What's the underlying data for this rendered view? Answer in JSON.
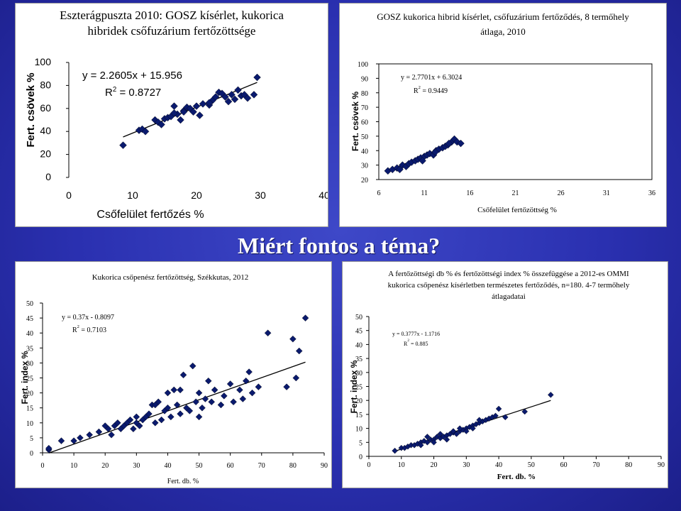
{
  "slide_title": "Miért fontos a téma?",
  "chart_data": [
    {
      "type": "scatter",
      "title_lines": [
        "Eszterágpuszta 2010: GOSZ kísérlet, kukorica",
        "hibridek csőfuzárium fertőzöttsége"
      ],
      "xlabel": "Csőfelület fertőzés %",
      "ylabel": "Fert. csövek %",
      "xlim": [
        0,
        40
      ],
      "ylim": [
        0,
        100
      ],
      "xticks": [
        "0",
        "10",
        "20",
        "30",
        "40"
      ],
      "yticks": [
        "0",
        "20",
        "40",
        "60",
        "80",
        "100"
      ],
      "equation": "y = 2.2605x + 15.956",
      "r2_prefix": "R",
      "r2_value": " = 0.8727",
      "trendline": {
        "slope": 2.2605,
        "intercept": 15.956,
        "x_range": [
          8.5,
          29.5
        ]
      },
      "gridlines": false,
      "points": [
        [
          8.5,
          28
        ],
        [
          11,
          41
        ],
        [
          11.5,
          42
        ],
        [
          12,
          40
        ],
        [
          13.5,
          50
        ],
        [
          14,
          48
        ],
        [
          14.5,
          46
        ],
        [
          15,
          51
        ],
        [
          15.5,
          52
        ],
        [
          16,
          53
        ],
        [
          16.5,
          62
        ],
        [
          17,
          55
        ],
        [
          17.5,
          50
        ],
        [
          18,
          58
        ],
        [
          18.5,
          61
        ],
        [
          19,
          60
        ],
        [
          19.5,
          57
        ],
        [
          20,
          62
        ],
        [
          20.5,
          54
        ],
        [
          21,
          64
        ],
        [
          22,
          63
        ],
        [
          22.5,
          67
        ],
        [
          23,
          70
        ],
        [
          23.5,
          74
        ],
        [
          24,
          73
        ],
        [
          24.5,
          70
        ],
        [
          25,
          66
        ],
        [
          25.5,
          72
        ],
        [
          26,
          68
        ],
        [
          26.5,
          76
        ],
        [
          27,
          71
        ],
        [
          27.5,
          72
        ],
        [
          28,
          69
        ],
        [
          29,
          72
        ],
        [
          29.5,
          87
        ],
        [
          16.5,
          56
        ],
        [
          18,
          57
        ],
        [
          22,
          65
        ]
      ]
    },
    {
      "type": "scatter",
      "title_lines": [
        "GOSZ kukorica hibrid kísérlet, csőfuzárium fertőződés, 8 termőhely",
        "átlaga, 2010"
      ],
      "xlabel": "Csőfelület fertőzöttség %",
      "ylabel": "Fert. csövek %",
      "xlim": [
        6,
        36
      ],
      "ylim": [
        20,
        100
      ],
      "xticks": [
        "6",
        "11",
        "16",
        "21",
        "26",
        "31",
        "36"
      ],
      "yticks": [
        "20",
        "30",
        "40",
        "50",
        "60",
        "70",
        "80",
        "90",
        "100"
      ],
      "equation": "y = 2.7701x + 6.3024",
      "r2_prefix": "R",
      "r2_value": " = 0.9449",
      "trendline": {
        "slope": 2.7701,
        "intercept": 6.3024,
        "x_range": [
          7,
          14.5
        ]
      },
      "gridlines": false,
      "points": [
        [
          7,
          26
        ],
        [
          7.5,
          27
        ],
        [
          8,
          28
        ],
        [
          8.3,
          27
        ],
        [
          8.6,
          30
        ],
        [
          9,
          29
        ],
        [
          9.3,
          31
        ],
        [
          9.6,
          32
        ],
        [
          10,
          33
        ],
        [
          10.3,
          34
        ],
        [
          10.6,
          35
        ],
        [
          11,
          36
        ],
        [
          11.3,
          37
        ],
        [
          11.6,
          38
        ],
        [
          12,
          37
        ],
        [
          12.3,
          40
        ],
        [
          12.6,
          41
        ],
        [
          13,
          42
        ],
        [
          13.3,
          43
        ],
        [
          13.6,
          44
        ],
        [
          14,
          46
        ],
        [
          14.3,
          48
        ],
        [
          14.6,
          46
        ],
        [
          15,
          45
        ],
        [
          10.8,
          33
        ],
        [
          12.2,
          39
        ],
        [
          13.7,
          45
        ]
      ]
    },
    {
      "type": "scatter",
      "title_lines": [
        "Kukorica csőpenész fertőzöttség, Székkutas, 2012"
      ],
      "xlabel": "Fert. db. %",
      "ylabel": "Fert. index %",
      "xlim": [
        0,
        90
      ],
      "ylim": [
        0,
        50
      ],
      "xticks": [
        "0",
        "10",
        "20",
        "30",
        "40",
        "50",
        "60",
        "70",
        "80",
        "90"
      ],
      "yticks": [
        "0",
        "5",
        "10",
        "15",
        "20",
        "25",
        "30",
        "35",
        "40",
        "45",
        "50"
      ],
      "equation": "y = 0.37x - 0.8097",
      "r2_prefix": "R",
      "r2_value": " = 0.7103",
      "trendline": {
        "slope": 0.37,
        "intercept": -0.8097,
        "x_range": [
          2,
          84
        ]
      },
      "gridlines": false,
      "points": [
        [
          2,
          1
        ],
        [
          2,
          1.5
        ],
        [
          6,
          4
        ],
        [
          10,
          4
        ],
        [
          12,
          5
        ],
        [
          15,
          6
        ],
        [
          18,
          7
        ],
        [
          20,
          9
        ],
        [
          21,
          8
        ],
        [
          22,
          6
        ],
        [
          23,
          9
        ],
        [
          24,
          10
        ],
        [
          25,
          8
        ],
        [
          26,
          9
        ],
        [
          27,
          10
        ],
        [
          28,
          11
        ],
        [
          29,
          8
        ],
        [
          30,
          10
        ],
        [
          31,
          9
        ],
        [
          32,
          11
        ],
        [
          33,
          12
        ],
        [
          34,
          13
        ],
        [
          35,
          16
        ],
        [
          36,
          10
        ],
        [
          37,
          17
        ],
        [
          38,
          11
        ],
        [
          39,
          14
        ],
        [
          40,
          15
        ],
        [
          41,
          12
        ],
        [
          42,
          21
        ],
        [
          43,
          16
        ],
        [
          44,
          13
        ],
        [
          45,
          26
        ],
        [
          46,
          15
        ],
        [
          47,
          14
        ],
        [
          48,
          29
        ],
        [
          49,
          17
        ],
        [
          50,
          20
        ],
        [
          51,
          15
        ],
        [
          52,
          18
        ],
        [
          53,
          24
        ],
        [
          54,
          17
        ],
        [
          55,
          21
        ],
        [
          57,
          16
        ],
        [
          58,
          19
        ],
        [
          60,
          23
        ],
        [
          61,
          17
        ],
        [
          63,
          21
        ],
        [
          64,
          18
        ],
        [
          65,
          24
        ],
        [
          66,
          27
        ],
        [
          67,
          20
        ],
        [
          69,
          22
        ],
        [
          72,
          40
        ],
        [
          78,
          22
        ],
        [
          80,
          38
        ],
        [
          81,
          25
        ],
        [
          82,
          34
        ],
        [
          84,
          45
        ],
        [
          40,
          20
        ],
        [
          44,
          21
        ],
        [
          50,
          12
        ],
        [
          36,
          16
        ],
        [
          30,
          12
        ]
      ]
    },
    {
      "type": "scatter",
      "title_lines": [
        "A fertőzöttségi db % és fertőzöttségi index % összefüggése a 2012-es OMMI",
        "kukorica csőpenész kísérletben természetes fertőződés, n=180. 4-7 termőhely",
        "átlagadatai"
      ],
      "xlabel": "Fert. db. %",
      "ylabel": "Fert. index %",
      "xlim": [
        0,
        90
      ],
      "ylim": [
        0,
        50
      ],
      "xticks": [
        "0",
        "10",
        "20",
        "30",
        "40",
        "50",
        "60",
        "70",
        "80",
        "90"
      ],
      "yticks": [
        "0",
        "5",
        "10",
        "15",
        "20",
        "25",
        "30",
        "35",
        "40",
        "45",
        "50"
      ],
      "equation": "y = 0.3777x - 1.1716",
      "r2_prefix": "R",
      "r2_value": " = 0.885",
      "trendline": {
        "slope": 0.3777,
        "intercept": -1.1716,
        "x_range": [
          8,
          56
        ]
      },
      "gridlines": false,
      "points": [
        [
          8,
          2
        ],
        [
          10,
          3
        ],
        [
          11,
          3
        ],
        [
          12,
          3.5
        ],
        [
          13,
          4
        ],
        [
          14,
          4
        ],
        [
          15,
          4.5
        ],
        [
          16,
          5
        ],
        [
          17,
          5.5
        ],
        [
          18,
          5
        ],
        [
          19,
          6
        ],
        [
          20,
          6
        ],
        [
          21,
          7
        ],
        [
          22,
          6.5
        ],
        [
          23,
          7
        ],
        [
          24,
          7.5
        ],
        [
          25,
          8
        ],
        [
          26,
          8.5
        ],
        [
          27,
          8
        ],
        [
          28,
          9
        ],
        [
          29,
          9.5
        ],
        [
          30,
          10
        ],
        [
          31,
          10.5
        ],
        [
          32,
          11
        ],
        [
          33,
          11.5
        ],
        [
          34,
          12
        ],
        [
          35,
          12.5
        ],
        [
          36,
          13
        ],
        [
          37,
          13.5
        ],
        [
          38,
          14
        ],
        [
          39,
          14.5
        ],
        [
          40,
          17
        ],
        [
          42,
          14
        ],
        [
          48,
          16
        ],
        [
          56,
          22
        ],
        [
          18,
          7
        ],
        [
          22,
          8
        ],
        [
          26,
          9
        ],
        [
          30,
          9
        ],
        [
          34,
          13
        ],
        [
          24,
          6
        ],
        [
          28,
          10
        ],
        [
          32,
          10
        ],
        [
          20,
          5
        ],
        [
          16,
          4
        ]
      ]
    }
  ]
}
